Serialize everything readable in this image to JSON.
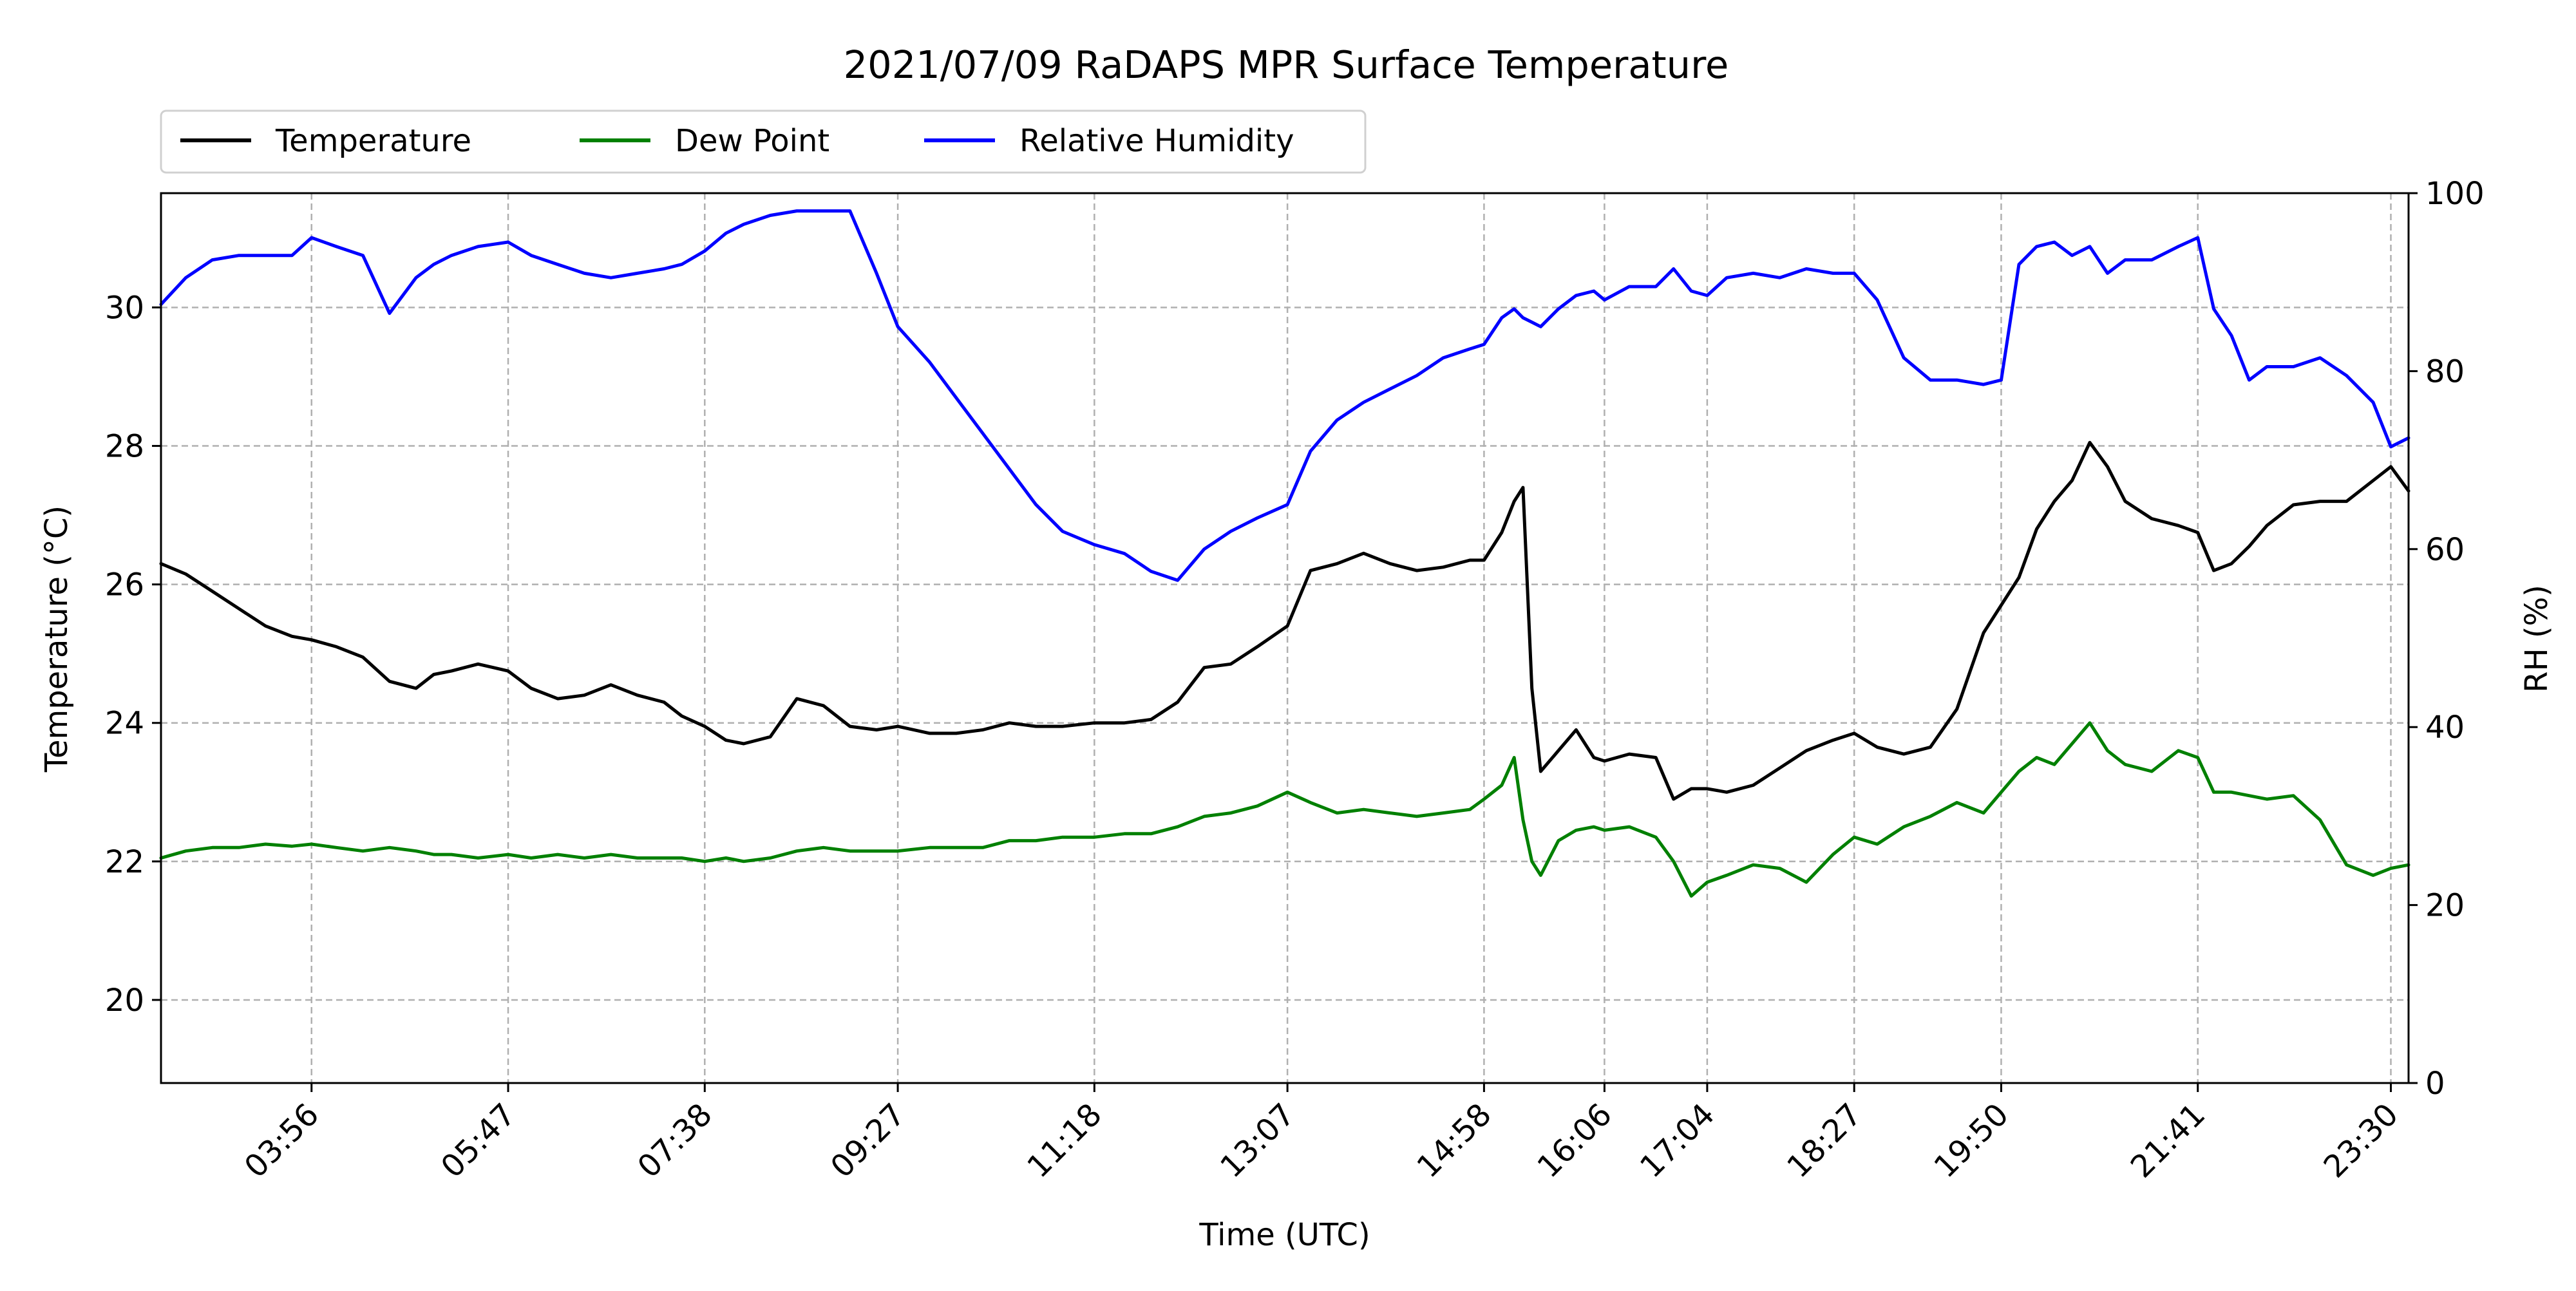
{
  "chart_data": {
    "type": "line",
    "title": "2021/07/09 RaDAPS MPR Surface Temperature",
    "xlabel": "Time (UTC)",
    "ylabel": "Temperature ($^\\circ$C)",
    "ylabel_display": "Temperature (°C)",
    "ylabel_right": "RH (%)",
    "grid": true,
    "legend_placement": "top-left, above plot, 3 columns",
    "xlim": [
      "02:31",
      "23:40"
    ],
    "x_ticks": [
      "03:56",
      "05:47",
      "07:38",
      "09:27",
      "11:18",
      "13:07",
      "14:58",
      "16:06",
      "17:04",
      "18:27",
      "19:50",
      "21:41",
      "23:30"
    ],
    "ylim": [
      18.8,
      31.65
    ],
    "y_ticks": [
      20,
      22,
      24,
      26,
      28,
      30
    ],
    "ylim_right": [
      0,
      100
    ],
    "y_ticks_right": [
      0,
      20,
      40,
      60,
      80,
      100
    ],
    "series": [
      {
        "name": "Temperature",
        "axis": "left",
        "color": "#000000",
        "x": [
          "02:31",
          "02:45",
          "03:00",
          "03:15",
          "03:30",
          "03:45",
          "03:56",
          "04:10",
          "04:25",
          "04:40",
          "04:55",
          "05:05",
          "05:15",
          "05:30",
          "05:47",
          "06:00",
          "06:15",
          "06:30",
          "06:45",
          "07:00",
          "07:15",
          "07:25",
          "07:38",
          "07:50",
          "08:00",
          "08:15",
          "08:30",
          "08:45",
          "09:00",
          "09:15",
          "09:27",
          "09:45",
          "10:00",
          "10:15",
          "10:30",
          "10:45",
          "11:00",
          "11:18",
          "11:35",
          "11:50",
          "12:05",
          "12:20",
          "12:35",
          "12:50",
          "13:07",
          "13:20",
          "13:35",
          "13:50",
          "14:05",
          "14:20",
          "14:35",
          "14:50",
          "14:58",
          "15:08",
          "15:15",
          "15:20",
          "15:25",
          "15:30",
          "15:40",
          "15:50",
          "16:00",
          "16:06",
          "16:20",
          "16:35",
          "16:45",
          "16:55",
          "17:04",
          "17:15",
          "17:30",
          "17:45",
          "18:00",
          "18:15",
          "18:27",
          "18:40",
          "18:55",
          "19:10",
          "19:25",
          "19:40",
          "19:50",
          "20:00",
          "20:10",
          "20:20",
          "20:30",
          "20:40",
          "20:50",
          "21:00",
          "21:15",
          "21:30",
          "21:41",
          "21:50",
          "22:00",
          "22:10",
          "22:20",
          "22:35",
          "22:50",
          "23:05",
          "23:20",
          "23:30",
          "23:40"
        ],
        "values": [
          26.3,
          26.15,
          25.9,
          25.65,
          25.4,
          25.25,
          25.2,
          25.1,
          24.95,
          24.6,
          24.5,
          24.7,
          24.75,
          24.85,
          24.75,
          24.5,
          24.35,
          24.4,
          24.55,
          24.4,
          24.3,
          24.1,
          23.95,
          23.75,
          23.7,
          23.8,
          24.35,
          24.25,
          23.95,
          23.9,
          23.95,
          23.85,
          23.85,
          23.9,
          24.0,
          23.95,
          23.95,
          24.0,
          24.0,
          24.05,
          24.3,
          24.8,
          24.85,
          25.1,
          25.4,
          26.2,
          26.3,
          26.45,
          26.3,
          26.2,
          26.25,
          26.35,
          26.35,
          26.75,
          27.2,
          27.4,
          24.5,
          23.3,
          23.6,
          23.9,
          23.5,
          23.45,
          23.55,
          23.5,
          22.9,
          23.05,
          23.05,
          23.0,
          23.1,
          23.35,
          23.6,
          23.75,
          23.85,
          23.65,
          23.55,
          23.65,
          24.2,
          25.3,
          25.7,
          26.1,
          26.8,
          27.2,
          27.5,
          28.05,
          27.7,
          27.2,
          26.95,
          26.85,
          26.75,
          26.2,
          26.3,
          26.55,
          26.85,
          27.15,
          27.2,
          27.2,
          27.5,
          27.7,
          27.35
        ]
      },
      {
        "name": "Dew Point",
        "axis": "left",
        "color": "#008000",
        "x": [
          "02:31",
          "02:45",
          "03:00",
          "03:15",
          "03:30",
          "03:45",
          "03:56",
          "04:10",
          "04:25",
          "04:40",
          "04:55",
          "05:05",
          "05:15",
          "05:30",
          "05:47",
          "06:00",
          "06:15",
          "06:30",
          "06:45",
          "07:00",
          "07:15",
          "07:25",
          "07:38",
          "07:50",
          "08:00",
          "08:15",
          "08:30",
          "08:45",
          "09:00",
          "09:15",
          "09:27",
          "09:45",
          "10:00",
          "10:15",
          "10:30",
          "10:45",
          "11:00",
          "11:18",
          "11:35",
          "11:50",
          "12:05",
          "12:20",
          "12:35",
          "12:50",
          "13:07",
          "13:20",
          "13:35",
          "13:50",
          "14:05",
          "14:20",
          "14:35",
          "14:50",
          "14:58",
          "15:08",
          "15:15",
          "15:20",
          "15:25",
          "15:30",
          "15:40",
          "15:50",
          "16:00",
          "16:06",
          "16:20",
          "16:35",
          "16:45",
          "16:55",
          "17:04",
          "17:15",
          "17:30",
          "17:45",
          "18:00",
          "18:15",
          "18:27",
          "18:40",
          "18:55",
          "19:10",
          "19:25",
          "19:40",
          "19:50",
          "20:00",
          "20:10",
          "20:20",
          "20:30",
          "20:40",
          "20:50",
          "21:00",
          "21:15",
          "21:30",
          "21:41",
          "21:50",
          "22:00",
          "22:10",
          "22:20",
          "22:35",
          "22:50",
          "23:05",
          "23:20",
          "23:30",
          "23:40"
        ],
        "values": [
          22.05,
          22.15,
          22.2,
          22.2,
          22.25,
          22.22,
          22.25,
          22.2,
          22.15,
          22.2,
          22.15,
          22.1,
          22.1,
          22.05,
          22.1,
          22.05,
          22.1,
          22.05,
          22.1,
          22.05,
          22.05,
          22.05,
          22.0,
          22.05,
          22.0,
          22.05,
          22.15,
          22.2,
          22.15,
          22.15,
          22.15,
          22.2,
          22.2,
          22.2,
          22.3,
          22.3,
          22.35,
          22.35,
          22.4,
          22.4,
          22.5,
          22.65,
          22.7,
          22.8,
          23.0,
          22.85,
          22.7,
          22.75,
          22.7,
          22.65,
          22.7,
          22.75,
          22.9,
          23.1,
          23.5,
          22.6,
          22.0,
          21.8,
          22.3,
          22.45,
          22.5,
          22.45,
          22.5,
          22.35,
          22.0,
          21.5,
          21.7,
          21.8,
          21.95,
          21.9,
          21.7,
          22.1,
          22.35,
          22.25,
          22.5,
          22.65,
          22.85,
          22.7,
          23.0,
          23.3,
          23.5,
          23.4,
          23.7,
          24.0,
          23.6,
          23.4,
          23.3,
          23.6,
          23.5,
          23.0,
          23.0,
          22.95,
          22.9,
          22.95,
          22.6,
          21.95,
          21.8,
          21.9,
          21.95
        ]
      },
      {
        "name": "Relative Humidity",
        "axis": "right",
        "color": "#0000ff",
        "x": [
          "02:31",
          "02:45",
          "03:00",
          "03:15",
          "03:30",
          "03:45",
          "03:56",
          "04:10",
          "04:25",
          "04:40",
          "04:55",
          "05:05",
          "05:15",
          "05:30",
          "05:47",
          "06:00",
          "06:15",
          "06:30",
          "06:45",
          "07:00",
          "07:15",
          "07:25",
          "07:38",
          "07:50",
          "08:00",
          "08:15",
          "08:30",
          "08:45",
          "09:00",
          "09:15",
          "09:27",
          "09:45",
          "10:00",
          "10:15",
          "10:30",
          "10:45",
          "11:00",
          "11:18",
          "11:35",
          "11:50",
          "12:05",
          "12:20",
          "12:35",
          "12:50",
          "13:07",
          "13:20",
          "13:35",
          "13:50",
          "14:05",
          "14:20",
          "14:35",
          "14:50",
          "14:58",
          "15:08",
          "15:15",
          "15:20",
          "15:25",
          "15:30",
          "15:40",
          "15:50",
          "16:00",
          "16:06",
          "16:20",
          "16:35",
          "16:45",
          "16:55",
          "17:04",
          "17:15",
          "17:30",
          "17:45",
          "18:00",
          "18:15",
          "18:27",
          "18:40",
          "18:55",
          "19:10",
          "19:25",
          "19:40",
          "19:50",
          "20:00",
          "20:10",
          "20:20",
          "20:30",
          "20:40",
          "20:50",
          "21:00",
          "21:15",
          "21:30",
          "21:41",
          "21:50",
          "22:00",
          "22:10",
          "22:20",
          "22:35",
          "22:50",
          "23:05",
          "23:20",
          "23:30",
          "23:40"
        ],
        "values": [
          87.5,
          90.5,
          92.5,
          93.0,
          93.0,
          93.0,
          95.0,
          94.0,
          93.0,
          86.5,
          90.5,
          92.0,
          93.0,
          94.0,
          94.5,
          93.0,
          92.0,
          91.0,
          90.5,
          91.0,
          91.5,
          92.0,
          93.5,
          95.5,
          96.5,
          97.5,
          98.0,
          98.0,
          98.0,
          91.0,
          85.0,
          81.0,
          77.0,
          73.0,
          69.0,
          65.0,
          62.0,
          60.5,
          59.5,
          57.5,
          56.5,
          60.0,
          62.0,
          63.5,
          65.0,
          71.0,
          74.5,
          76.5,
          78.0,
          79.5,
          81.5,
          82.5,
          83.0,
          86.0,
          87.0,
          86.0,
          85.5,
          85.0,
          87.0,
          88.5,
          89.0,
          88.0,
          89.5,
          89.5,
          91.5,
          89.0,
          88.5,
          90.5,
          91.0,
          90.5,
          91.5,
          91.0,
          91.0,
          88.0,
          81.5,
          79.0,
          79.0,
          78.5,
          79.0,
          92.0,
          94.0,
          94.5,
          93.0,
          94.0,
          91.0,
          92.5,
          92.5,
          94.0,
          95.0,
          87.0,
          84.0,
          79.0,
          80.5,
          80.5,
          81.5,
          79.5,
          76.5,
          71.5,
          72.5
        ]
      }
    ]
  }
}
